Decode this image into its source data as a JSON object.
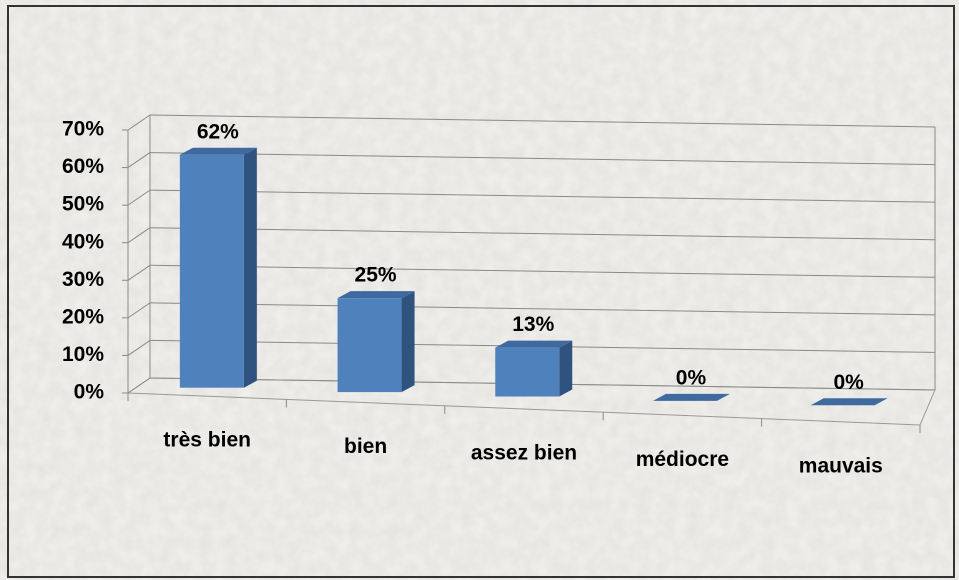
{
  "chart_data": {
    "type": "bar3d",
    "categories": [
      "très bien",
      "bien",
      "assez bien",
      "médiocre",
      "mauvais"
    ],
    "values": [
      62,
      25,
      13,
      0,
      0
    ],
    "value_labels": [
      "62%",
      "25%",
      "13%",
      "0%",
      "0%"
    ],
    "color": "#4f81bd",
    "ylim": [
      0,
      70
    ],
    "yticks": [
      {
        "value": 0,
        "label": "0%"
      },
      {
        "value": 10,
        "label": "10%"
      },
      {
        "value": 20,
        "label": "20%"
      },
      {
        "value": 30,
        "label": "30%"
      },
      {
        "value": 40,
        "label": "40%"
      },
      {
        "value": 50,
        "label": "50%"
      },
      {
        "value": 60,
        "label": "60%"
      },
      {
        "value": 70,
        "label": "70%"
      }
    ],
    "grid": true
  }
}
